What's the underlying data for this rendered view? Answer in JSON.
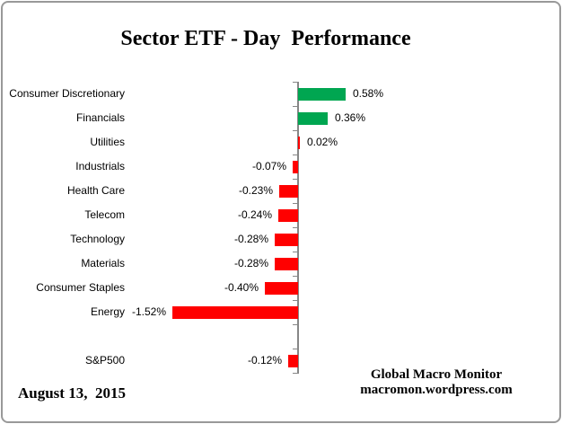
{
  "title": "Sector ETF - Day  Performance",
  "chart_data": {
    "type": "bar",
    "orientation": "horizontal",
    "title": "Sector ETF - Day  Performance",
    "value_unit": "percent",
    "positive_color": "#00A651",
    "negative_color": "#FF0000",
    "axis_color": "#878787",
    "grid": false,
    "series": [
      {
        "label": "Consumer Discretionary",
        "value": 0.58,
        "display": "0.58%",
        "color": "#00A651"
      },
      {
        "label": "Financials",
        "value": 0.36,
        "display": "0.36%",
        "color": "#00A651"
      },
      {
        "label": "Utilities",
        "value": 0.02,
        "display": "0.02%",
        "color": "#FF0000"
      },
      {
        "label": "Industrials",
        "value": -0.07,
        "display": "-0.07%",
        "color": "#FF0000"
      },
      {
        "label": "Health Care",
        "value": -0.23,
        "display": "-0.23%",
        "color": "#FF0000"
      },
      {
        "label": "Telecom",
        "value": -0.24,
        "display": "-0.24%",
        "color": "#FF0000"
      },
      {
        "label": "Technology",
        "value": -0.28,
        "display": "-0.28%",
        "color": "#FF0000"
      },
      {
        "label": "Materials",
        "value": -0.28,
        "display": "-0.28%",
        "color": "#FF0000"
      },
      {
        "label": "Consumer Staples",
        "value": -0.4,
        "display": "-0.40%",
        "color": "#FF0000"
      },
      {
        "label": "Energy",
        "value": -1.52,
        "display": "-1.52%",
        "color": "#FF0000"
      },
      {
        "label": "",
        "value": null,
        "display": "",
        "spacer": true
      },
      {
        "label": "S&P500",
        "value": -0.12,
        "display": "-0.12%",
        "color": "#FF0000"
      }
    ]
  },
  "footer": {
    "date": "August 13,  2015",
    "credit_line1": "Global Macro Monitor",
    "credit_line2": "macromon.wordpress.com"
  }
}
